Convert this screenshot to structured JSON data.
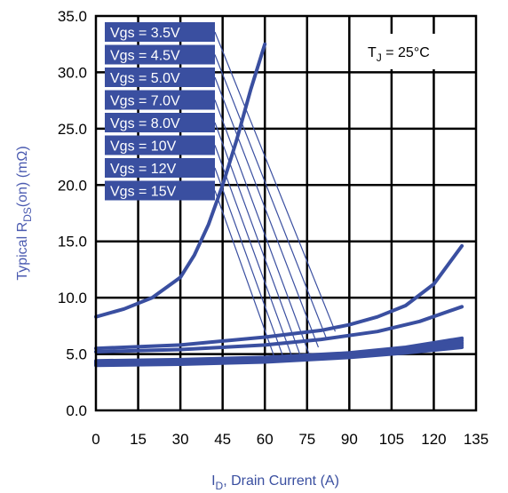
{
  "chart_data": {
    "type": "line",
    "xlabel": {
      "main": "I",
      "sub": "D",
      "rest": ", Drain Current (A)"
    },
    "ylabel": {
      "main": "Typical R",
      "sub": "DS",
      "rest": "(on) (mΩ)"
    },
    "xlim": [
      0,
      135
    ],
    "ylim": [
      0,
      35
    ],
    "x_ticks": [
      "0",
      "15",
      "30",
      "45",
      "60",
      "75",
      "90",
      "105",
      "120",
      "135"
    ],
    "y_ticks": [
      "0.0",
      "5.0",
      "10.0",
      "15.0",
      "20.0",
      "25.0",
      "30.0",
      "35.0"
    ],
    "grid": true,
    "annotation": {
      "main": "T",
      "sub": "J",
      "rest": " = 25°C"
    },
    "colors": {
      "series": "#3a4fa0",
      "ylabel": "#4a5ab0",
      "grid": "#000000",
      "plot_bg": "#ffffff",
      "label_fill": "#3a4fa0"
    },
    "series": [
      {
        "name": "Vgs = 3.5V",
        "x": [
          0,
          10,
          20,
          30,
          35,
          40,
          45,
          50,
          55,
          60
        ],
        "y": [
          8.3,
          9.0,
          10.0,
          11.8,
          13.8,
          16.5,
          20.0,
          24.0,
          28.5,
          32.5
        ],
        "label_end": [
          85,
          7.0
        ]
      },
      {
        "name": "Vgs = 4.5V",
        "x": [
          0,
          30,
          60,
          80,
          90,
          100,
          110,
          120,
          130
        ],
        "y": [
          5.5,
          5.8,
          6.5,
          7.1,
          7.6,
          8.3,
          9.3,
          11.2,
          14.6
        ],
        "label_end": [
          82,
          6.3
        ]
      },
      {
        "name": "Vgs = 5.0V",
        "x": [
          0,
          30,
          60,
          80,
          100,
          115,
          130
        ],
        "y": [
          5.2,
          5.4,
          5.8,
          6.3,
          7.0,
          7.9,
          9.2
        ],
        "label_end": [
          79,
          5.6
        ]
      },
      {
        "name": "Vgs = 7.0V",
        "x": [
          0,
          30,
          60,
          90,
          110,
          130
        ],
        "y": [
          4.4,
          4.5,
          4.7,
          5.1,
          5.6,
          6.4
        ],
        "label_end": [
          76,
          4.8
        ]
      },
      {
        "name": "Vgs = 8.0V",
        "x": [
          0,
          30,
          60,
          90,
          110,
          130
        ],
        "y": [
          4.3,
          4.4,
          4.6,
          5.0,
          5.5,
          6.2
        ],
        "label_end": [
          73,
          4.6
        ]
      },
      {
        "name": "Vgs = 10V",
        "x": [
          0,
          30,
          60,
          90,
          110,
          130
        ],
        "y": [
          4.2,
          4.3,
          4.5,
          4.9,
          5.3,
          6.0
        ],
        "label_end": [
          70,
          4.5
        ]
      },
      {
        "name": "Vgs = 12V",
        "x": [
          0,
          30,
          60,
          90,
          110,
          130
        ],
        "y": [
          4.1,
          4.2,
          4.4,
          4.8,
          5.2,
          5.8
        ],
        "label_end": [
          67,
          4.4
        ]
      },
      {
        "name": "Vgs = 15V",
        "x": [
          0,
          30,
          60,
          90,
          110,
          130
        ],
        "y": [
          4.0,
          4.1,
          4.3,
          4.7,
          5.1,
          5.6
        ],
        "label_end": [
          64,
          4.3
        ]
      }
    ]
  }
}
